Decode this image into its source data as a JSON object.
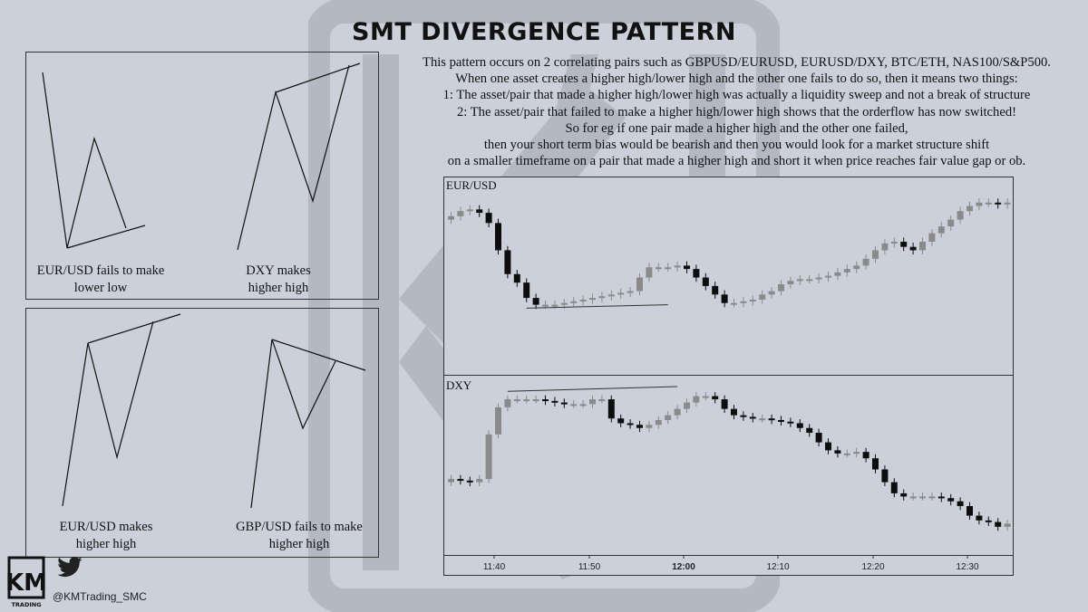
{
  "title": "SMT DIVERGENCE PATTERN",
  "description_lines": [
    "This pattern occurs on 2 correlating pairs such as GBPUSD/EURUSD, EURUSD/DXY, BTC/ETH, NAS100/S&P500.",
    "When one asset creates a higher high/lower high and the other one fails to do so, then it means two things:",
    "1: The asset/pair that made a higher high/lower high was actually a liquidity sweep and not a break of structure",
    "2: The asset/pair that failed to make a higher high/lower high shows that the orderflow has now switched!",
    "So for eg if one pair made a higher high and the other one failed,",
    "then your short term bias would be bearish and then you would look for a market structure shift",
    "on a smaller timeframe on a pair that made a higher high and short it when price reaches fair value gap or ob."
  ],
  "diagrams": {
    "top_left": {
      "caption_line1": "EUR/USD fails to make",
      "caption_line2": "lower low"
    },
    "top_right": {
      "caption_line1": "DXY makes",
      "caption_line2": "higher high"
    },
    "bottom_left": {
      "caption_line1": "EUR/USD makes",
      "caption_line2": "higher high"
    },
    "bottom_right": {
      "caption_line1": "GBP/USD fails to make",
      "caption_line2": "higher high"
    }
  },
  "chart_data": [
    {
      "type": "candlestick",
      "pane_label": "EUR/USD",
      "x_ticks": [
        "11:40",
        "11:50",
        "12:00",
        "12:10",
        "12:20",
        "12:30"
      ],
      "candle_count": 60,
      "close_path_relative": [
        0.82,
        0.85,
        0.86,
        0.84,
        0.78,
        0.62,
        0.48,
        0.43,
        0.34,
        0.3,
        0.3,
        0.3,
        0.31,
        0.32,
        0.33,
        0.34,
        0.35,
        0.36,
        0.37,
        0.38,
        0.46,
        0.52,
        0.52,
        0.52,
        0.53,
        0.51,
        0.46,
        0.41,
        0.36,
        0.31,
        0.31,
        0.32,
        0.33,
        0.36,
        0.38,
        0.42,
        0.44,
        0.45,
        0.45,
        0.46,
        0.47,
        0.49,
        0.51,
        0.53,
        0.57,
        0.62,
        0.66,
        0.67,
        0.64,
        0.62,
        0.67,
        0.72,
        0.76,
        0.8,
        0.85,
        0.88,
        0.9,
        0.9,
        0.89,
        0.9
      ],
      "annotation": "trendline connecting lows near 11:43 and 11:59 (higher low)"
    },
    {
      "type": "candlestick",
      "pane_label": "DXY",
      "x_ticks": [
        "11:40",
        "11:50",
        "12:00",
        "12:10",
        "12:20",
        "12:30"
      ],
      "candle_count": 60,
      "close_path_relative": [
        0.42,
        0.41,
        0.4,
        0.42,
        0.7,
        0.87,
        0.92,
        0.92,
        0.92,
        0.92,
        0.91,
        0.9,
        0.89,
        0.89,
        0.89,
        0.92,
        0.92,
        0.8,
        0.77,
        0.76,
        0.74,
        0.76,
        0.79,
        0.82,
        0.86,
        0.9,
        0.94,
        0.94,
        0.92,
        0.86,
        0.82,
        0.81,
        0.8,
        0.8,
        0.79,
        0.78,
        0.77,
        0.74,
        0.71,
        0.65,
        0.6,
        0.58,
        0.58,
        0.59,
        0.55,
        0.48,
        0.4,
        0.33,
        0.31,
        0.31,
        0.31,
        0.31,
        0.3,
        0.28,
        0.25,
        0.19,
        0.16,
        0.15,
        0.12,
        0.14
      ],
      "annotation": "trendline connecting highs near 11:43 and 11:58 (higher high)"
    }
  ],
  "footer": {
    "logo_text": "KM",
    "logo_subtext": "TRADING",
    "handle": "@KMTrading_SMC",
    "icon": "twitter-bird-icon"
  }
}
